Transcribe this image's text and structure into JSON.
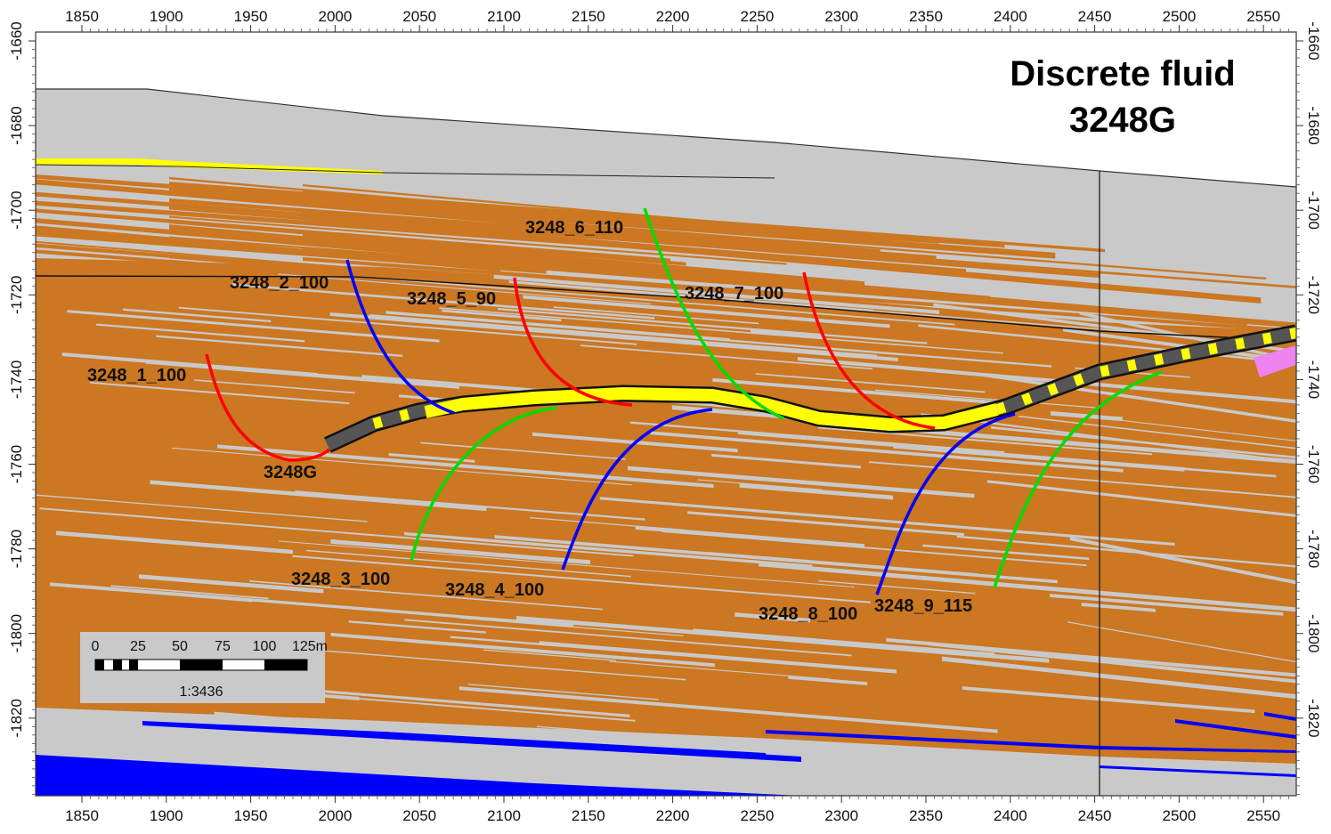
{
  "title": {
    "line1": "Discrete fluid",
    "line2": "3248G"
  },
  "axes": {
    "x_ticks": [
      "1850",
      "1900",
      "1950",
      "2000",
      "2050",
      "2100",
      "2150",
      "2200",
      "2250",
      "2300",
      "2350",
      "2400",
      "2450",
      "2500",
      "2550"
    ],
    "y_ticks": [
      "-1660",
      "-1680",
      "-1700",
      "-1720",
      "-1740",
      "-1760",
      "-1780",
      "-1800",
      "-1820"
    ]
  },
  "wells": [
    {
      "name": "3248_1_100",
      "color": "#ff0000"
    },
    {
      "name": "3248_2_100",
      "color": "#0000ff"
    },
    {
      "name": "3248_3_100",
      "color": "#00dd00"
    },
    {
      "name": "3248_4_100",
      "color": "#0000ff"
    },
    {
      "name": "3248_5_90",
      "color": "#ff0000"
    },
    {
      "name": "3248_6_110",
      "color": "#00dd00"
    },
    {
      "name": "3248_7_100",
      "color": "#ff0000"
    },
    {
      "name": "3248_8_100",
      "color": "#0000ff"
    },
    {
      "name": "3248_9_115",
      "color": "#00dd00"
    }
  ],
  "main_well": {
    "name": "3248G",
    "color": "#ffff00"
  },
  "scale_bar": {
    "labels": [
      "0",
      "25",
      "50",
      "75",
      "100",
      "125m"
    ],
    "ratio": "1:3436"
  },
  "colors": {
    "shale": "#c9c9c9",
    "sand": "#cc7722",
    "water": "#0000ff",
    "oil_zone": "#ffff00"
  }
}
